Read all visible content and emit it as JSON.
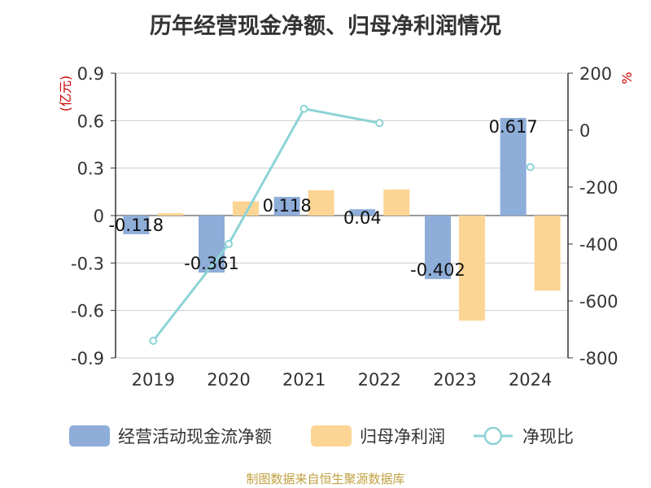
{
  "title": "历年经营现金净额、归母净利润情况",
  "footer": "制图数据来自恒生聚源数据库",
  "left_unit": "(亿元)",
  "right_unit": "%",
  "colors": {
    "cash": "#8eadd9",
    "profit": "#fcd594",
    "ratio": "#8dd3d6",
    "unit": "#cc0000",
    "axis": "#333333",
    "grid": "#cccccc",
    "footer": "#c0a040"
  },
  "legend": [
    {
      "label": "经营活动现金流净额",
      "kind": "bar",
      "color": "#8eadd9"
    },
    {
      "label": "归母净利润",
      "kind": "bar",
      "color": "#fcd594"
    },
    {
      "label": "净现比",
      "kind": "line",
      "color": "#8dd3d6"
    }
  ],
  "chart_data": {
    "type": "bar",
    "categories": [
      "2019",
      "2020",
      "2021",
      "2022",
      "2023",
      "2024"
    ],
    "series": [
      {
        "name": "经营活动现金流净额",
        "axis": "left",
        "type": "bar",
        "values": [
          -0.118,
          -0.361,
          0.118,
          0.04,
          -0.402,
          0.617
        ],
        "labels": [
          "-0.118",
          "-0.361",
          "0.118",
          "0.04",
          "-0.402",
          "0.617"
        ]
      },
      {
        "name": "归母净利润",
        "axis": "left",
        "type": "bar",
        "values": [
          0.015,
          0.09,
          0.16,
          0.165,
          -0.665,
          -0.475
        ]
      },
      {
        "name": "净现比",
        "axis": "right",
        "type": "line",
        "values": [
          -740,
          -400,
          75,
          25,
          null,
          -130
        ]
      }
    ],
    "y_left": {
      "min": -0.9,
      "max": 0.9,
      "ticks": [
        "0.9",
        "0.6",
        "0.3",
        "0",
        "-0.3",
        "-0.6",
        "-0.9"
      ],
      "tick_values": [
        0.9,
        0.6,
        0.3,
        0,
        -0.3,
        -0.6,
        -0.9
      ]
    },
    "y_right": {
      "min": -800,
      "max": 200,
      "ticks": [
        "200",
        "0",
        "-200",
        "-400",
        "-600",
        "-800"
      ],
      "tick_values": [
        200,
        0,
        -200,
        -400,
        -600,
        -800
      ]
    },
    "grid": true,
    "legend_position": "bottom"
  }
}
